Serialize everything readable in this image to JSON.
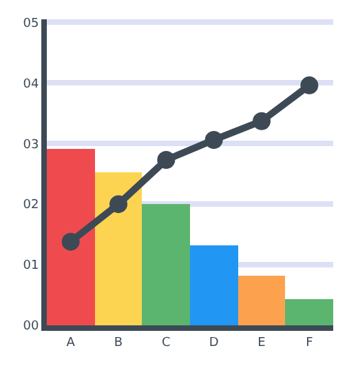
{
  "chart_data": {
    "type": "bar",
    "categories": [
      "A",
      "B",
      "C",
      "D",
      "E",
      "F"
    ],
    "ylim": [
      0,
      5.05
    ],
    "yticks": [
      {
        "value": 0,
        "label": "00"
      },
      {
        "value": 1,
        "label": "01"
      },
      {
        "value": 2,
        "label": "02"
      },
      {
        "value": 3,
        "label": "03"
      },
      {
        "value": 4,
        "label": "04"
      },
      {
        "value": 5,
        "label": "05"
      }
    ],
    "grid": "y",
    "series": [
      {
        "values": [
          2.92,
          2.52,
          2.0,
          1.33,
          0.82,
          0.44
        ],
        "colors": [
          "#ef4b4f",
          "#fdd452",
          "#5bb56f",
          "#2196f3",
          "#fca24f",
          "#5bb56f"
        ]
      },
      {
        "type": "line",
        "color": "#3d4a56",
        "values": [
          1.38,
          2.0,
          2.73,
          3.06,
          3.37,
          3.96
        ]
      }
    ],
    "marker": "circle",
    "line_style": "solid"
  }
}
